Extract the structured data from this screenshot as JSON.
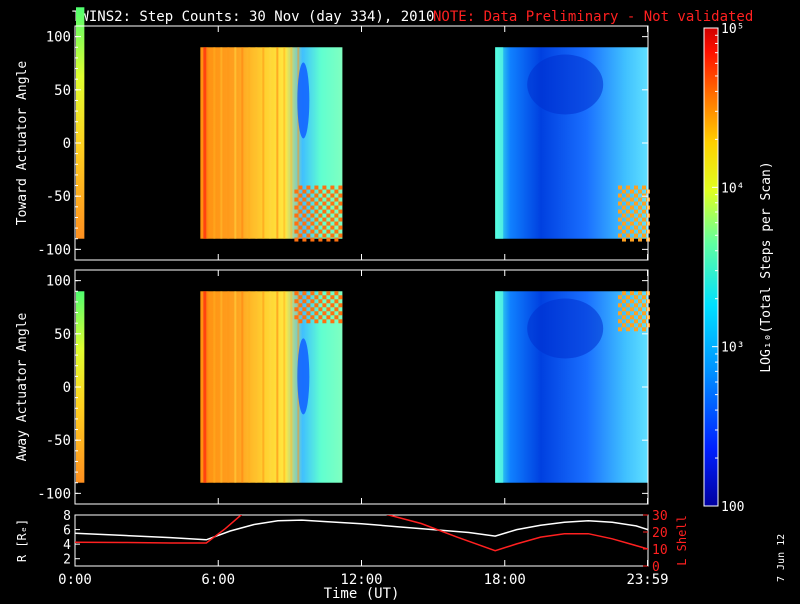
{
  "title": {
    "main": "TWINS2: Step Counts: 30 Nov (day 334), 2010",
    "note": "NOTE: Data Preliminary - Not validated"
  },
  "colors": {
    "background": "#000000",
    "axes": "#ffffff",
    "note": "#ff2020",
    "radius_line": "#ffffff",
    "lshell_line": "#ff2020"
  },
  "side_stamp": "7 Jun 12",
  "chart_data": [
    {
      "type": "heatmap",
      "name": "toward-panel",
      "ylabel": "Toward Actuator Angle",
      "ylim": [
        -110,
        110
      ],
      "yticks": [
        100,
        50,
        0,
        -50,
        -100
      ],
      "xlim": [
        0,
        24
      ],
      "data_blocks": [
        {
          "start": 0.0,
          "end": 0.35,
          "level": "mixed-low"
        },
        {
          "start": 5.25,
          "end": 11.2,
          "level": "high-to-mid"
        },
        {
          "start": 17.6,
          "end": 24.0,
          "level": "low"
        }
      ]
    },
    {
      "type": "heatmap",
      "name": "away-panel",
      "ylabel": "Away Actuator Angle",
      "ylim": [
        -110,
        110
      ],
      "yticks": [
        100,
        50,
        0,
        -50,
        -100
      ],
      "xlim": [
        0,
        24
      ],
      "data_blocks": [
        {
          "start": 0.0,
          "end": 0.35,
          "level": "mixed-low"
        },
        {
          "start": 5.25,
          "end": 11.2,
          "level": "high-to-mid"
        },
        {
          "start": 17.6,
          "end": 24.0,
          "level": "low"
        }
      ]
    },
    {
      "type": "line",
      "name": "orbit-panel",
      "xlabel": "Time (UT)",
      "xticks": [
        "0:00",
        "6:00",
        "12:00",
        "18:00",
        "23:59"
      ],
      "xtick_values": [
        0,
        6,
        12,
        18,
        23.98
      ],
      "ylabel_left": "R [Rₑ]",
      "ylim_left": [
        1,
        8
      ],
      "yticks_left": [
        8,
        6,
        4,
        2
      ],
      "ylabel_right": "L Shell",
      "ylim_right": [
        0,
        30
      ],
      "yticks_right": [
        30,
        20,
        10,
        0
      ],
      "series": [
        {
          "axis": "left",
          "x": [
            0,
            2,
            4,
            5.5,
            6.5,
            7.5,
            8.5,
            9.5,
            10.5,
            12,
            13.5,
            15,
            16.5,
            17.6,
            18.5,
            19.5,
            20.5,
            21.5,
            22.5,
            23.5,
            24
          ],
          "y": [
            5.5,
            5.2,
            4.9,
            4.6,
            5.8,
            6.7,
            7.2,
            7.3,
            7.1,
            6.8,
            6.4,
            6.0,
            5.6,
            5.1,
            6.0,
            6.6,
            7.0,
            7.2,
            7.0,
            6.5,
            6.0
          ]
        },
        {
          "axis": "right",
          "x": [
            0,
            2,
            4,
            5.5,
            6.3,
            7.0,
            13.0,
            14.5,
            16,
            17.6,
            18.5,
            19.5,
            20.5,
            21.5,
            22.5,
            23.5,
            24
          ],
          "y": [
            14,
            13.8,
            13.5,
            13.5,
            22,
            30.5,
            30.5,
            25,
            17,
            9,
            13,
            17,
            19,
            19,
            16,
            12,
            10
          ]
        }
      ]
    }
  ],
  "colorbar": {
    "ylabel": "LOG₁₀(Total Steps per Scan)",
    "ticks": [
      "10⁵",
      "10⁴",
      "10³",
      "100"
    ],
    "tick_values": [
      100000,
      10000,
      1000,
      100
    ],
    "colors": [
      "#0000a0",
      "#0020ff",
      "#0090ff",
      "#00e0ff",
      "#60ffa0",
      "#e0ff20",
      "#ffd000",
      "#ff7000",
      "#ff1000",
      "#d00000"
    ]
  }
}
